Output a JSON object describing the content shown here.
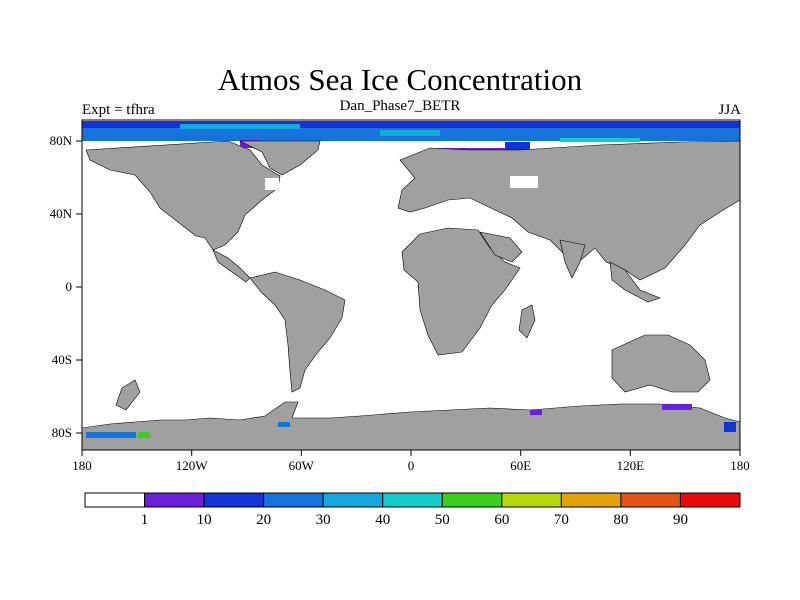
{
  "map": {
    "title": "Atmos Sea Ice Concentration",
    "subtitle": "Dan_Phase7_BETR",
    "left_label": "Expt = tfhra",
    "right_label": "JJA",
    "x_ticks": [
      "180",
      "120W",
      "60W",
      "0",
      "60E",
      "120E",
      "180"
    ],
    "y_ticks": [
      "80N",
      "40N",
      "0",
      "40S",
      "80S"
    ],
    "land_color": "#a0a0a0",
    "ocean_color": "#ffffff"
  },
  "colorbar": {
    "colors": [
      "#ffffff",
      "#6a1fd8",
      "#1234d6",
      "#1673dc",
      "#14a8dc",
      "#12cdc8",
      "#3ccf1e",
      "#b7d60e",
      "#e3a20a",
      "#e05514",
      "#e80a0a"
    ],
    "labels": [
      "1",
      "10",
      "20",
      "30",
      "40",
      "50",
      "60",
      "70",
      "80",
      "90"
    ]
  }
}
